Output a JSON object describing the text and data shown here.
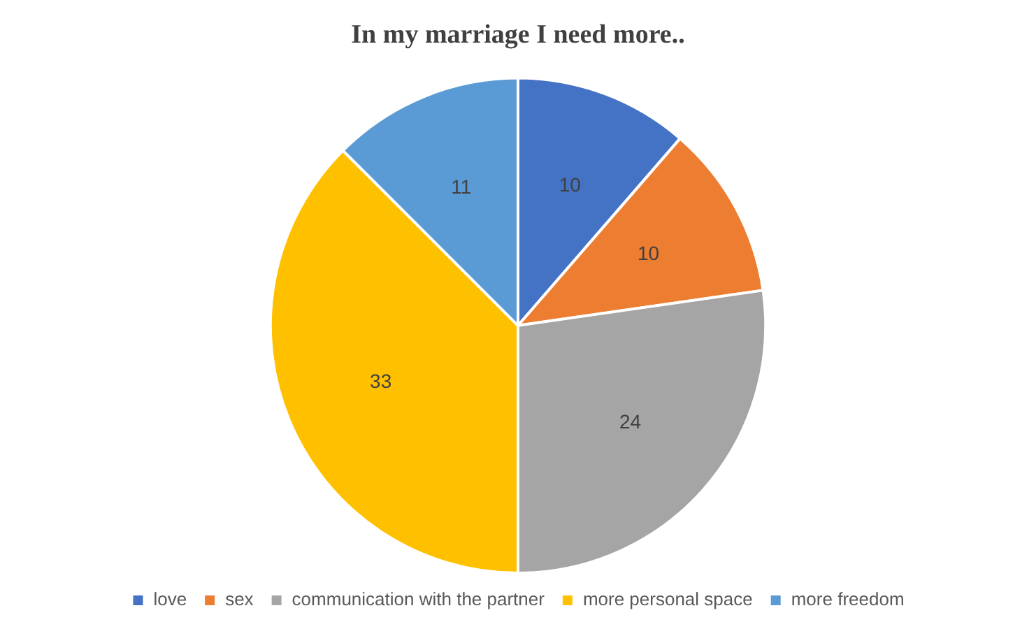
{
  "chart_data": {
    "type": "pie",
    "title": "In my marriage I need more..",
    "categories": [
      "love",
      "sex",
      "communication with the partner",
      "more personal space",
      "more freedom"
    ],
    "values": [
      10,
      10,
      24,
      33,
      11
    ],
    "colors": [
      "#4472c4",
      "#ed7d31",
      "#a5a5a5",
      "#ffc000",
      "#5b9bd5"
    ],
    "data_labels": true,
    "legend": "bottom"
  }
}
